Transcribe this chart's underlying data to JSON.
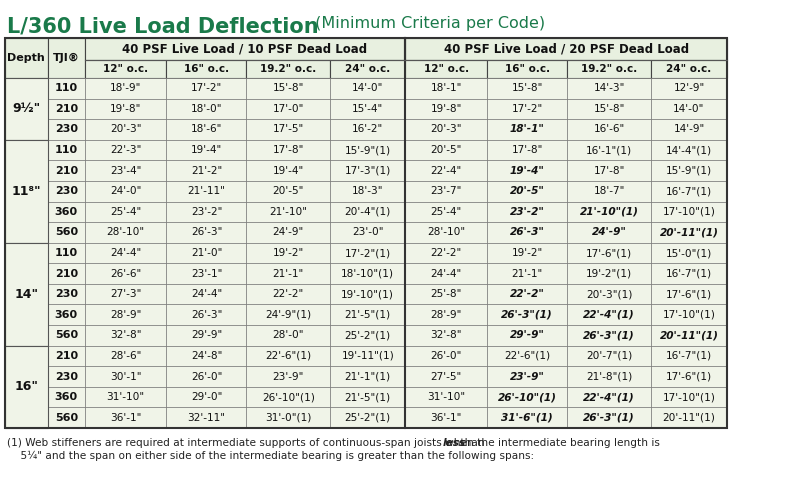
{
  "title_bold": "L/360 Live Load Deflection",
  "title_normal": " (Minimum Criteria per Code)",
  "title_color": "#1a7a4a",
  "bg_color": "#ffffff",
  "header_bg": "#e8f0e0",
  "cell_bg_light": "#f0f4e8",
  "border_color": "#555555",
  "col_header_1": "40 PSF Live Load / 10 PSF Dead Load",
  "col_header_2": "40 PSF Live Load / 20 PSF Dead Load",
  "sub_headers": [
    "12\" o.c.",
    "16\" o.c.",
    "19.2\" o.c.",
    "24\" o.c.",
    "12\" o.c.",
    "16\" o.c.",
    "19.2\" o.c.",
    "24\" o.c."
  ],
  "depth_col": "Depth",
  "tji_col": "TJI®",
  "note_line1": "(1) Web stiffeners are required at intermediate supports of continuous-span joists when the intermediate bearing length is ",
  "note_less": "less",
  "note_line1b": " than",
  "note_line2": "    5¼\" and the span on either side of the intermediate bearing is greater than the following spans:",
  "rows": [
    {
      "depth": "9½\"",
      "tji": "110",
      "d1": "18'-9\"",
      "d2": "17'-2\"",
      "d3": "15'-8\"",
      "d4": "14'-0\"",
      "d5": "18'-1\"",
      "d6": "15'-8\"",
      "d7": "14'-3\"",
      "d8": "12'-9\"",
      "bold_cells": []
    },
    {
      "depth": "",
      "tji": "210",
      "d1": "19'-8\"",
      "d2": "18'-0\"",
      "d3": "17'-0\"",
      "d4": "15'-4\"",
      "d5": "19'-8\"",
      "d6": "17'-2\"",
      "d7": "15'-8\"",
      "d8": "14'-0\"",
      "bold_cells": []
    },
    {
      "depth": "",
      "tji": "230",
      "d1": "20'-3\"",
      "d2": "18'-6\"",
      "d3": "17'-5\"",
      "d4": "16'-2\"",
      "d5": "20'-3\"",
      "d6": "18'-1\"",
      "d7": "16'-6\"",
      "d8": "14'-9\"",
      "bold_cells": [
        1
      ]
    },
    {
      "depth": "11⁸\"",
      "tji": "110",
      "d1": "22'-3\"",
      "d2": "19'-4\"",
      "d3": "17'-8\"",
      "d4": "15'-9\"(1)",
      "d5": "20'-5\"",
      "d6": "17'-8\"",
      "d7": "16'-1\"(1)",
      "d8": "14'-4\"(1)",
      "bold_cells": []
    },
    {
      "depth": "",
      "tji": "210",
      "d1": "23'-4\"",
      "d2": "21'-2\"",
      "d3": "19'-4\"",
      "d4": "17'-3\"(1)",
      "d5": "22'-4\"",
      "d6": "19'-4\"",
      "d7": "17'-8\"",
      "d8": "15'-9\"(1)",
      "bold_cells": [
        1
      ]
    },
    {
      "depth": "",
      "tji": "230",
      "d1": "24'-0\"",
      "d2": "21'-11\"",
      "d3": "20'-5\"",
      "d4": "18'-3\"",
      "d5": "23'-7\"",
      "d6": "20'-5\"",
      "d7": "18'-7\"",
      "d8": "16'-7\"(1)",
      "bold_cells": [
        1
      ]
    },
    {
      "depth": "",
      "tji": "360",
      "d1": "25'-4\"",
      "d2": "23'-2\"",
      "d3": "21'-10\"",
      "d4": "20'-4\"(1)",
      "d5": "25'-4\"",
      "d6": "23'-2\"",
      "d7": "21'-10\"(1)",
      "d8": "17'-10\"(1)",
      "bold_cells": [
        1,
        2
      ]
    },
    {
      "depth": "",
      "tji": "560",
      "d1": "28'-10\"",
      "d2": "26'-3\"",
      "d3": "24'-9\"",
      "d4": "23'-0\"",
      "d5": "28'-10\"",
      "d6": "26'-3\"",
      "d7": "24'-9\"",
      "d8": "20'-11\"(1)",
      "bold_cells": [
        1,
        2,
        3
      ]
    },
    {
      "depth": "14\"",
      "tji": "110",
      "d1": "24'-4\"",
      "d2": "21'-0\"",
      "d3": "19'-2\"",
      "d4": "17'-2\"(1)",
      "d5": "22'-2\"",
      "d6": "19'-2\"",
      "d7": "17'-6\"(1)",
      "d8": "15'-0\"(1)",
      "bold_cells": []
    },
    {
      "depth": "",
      "tji": "210",
      "d1": "26'-6\"",
      "d2": "23'-1\"",
      "d3": "21'-1\"",
      "d4": "18'-10\"(1)",
      "d5": "24'-4\"",
      "d6": "21'-1\"",
      "d7": "19'-2\"(1)",
      "d8": "16'-7\"(1)",
      "bold_cells": []
    },
    {
      "depth": "",
      "tji": "230",
      "d1": "27'-3\"",
      "d2": "24'-4\"",
      "d3": "22'-2\"",
      "d4": "19'-10\"(1)",
      "d5": "25'-8\"",
      "d6": "22'-2\"",
      "d7": "20'-3\"(1)",
      "d8": "17'-6\"(1)",
      "bold_cells": [
        1
      ]
    },
    {
      "depth": "",
      "tji": "360",
      "d1": "28'-9\"",
      "d2": "26'-3\"",
      "d3": "24'-9\"(1)",
      "d4": "21'-5\"(1)",
      "d5": "28'-9\"",
      "d6": "26'-3\"(1)",
      "d7": "22'-4\"(1)",
      "d8": "17'-10\"(1)",
      "bold_cells": [
        1,
        2
      ]
    },
    {
      "depth": "",
      "tji": "560",
      "d1": "32'-8\"",
      "d2": "29'-9\"",
      "d3": "28'-0\"",
      "d4": "25'-2\"(1)",
      "d5": "32'-8\"",
      "d6": "29'-9\"",
      "d7": "26'-3\"(1)",
      "d8": "20'-11\"(1)",
      "bold_cells": [
        1,
        2,
        3
      ]
    },
    {
      "depth": "16\"",
      "tji": "210",
      "d1": "28'-6\"",
      "d2": "24'-8\"",
      "d3": "22'-6\"(1)",
      "d4": "19'-11\"(1)",
      "d5": "26'-0\"",
      "d6": "22'-6\"(1)",
      "d7": "20'-7\"(1)",
      "d8": "16'-7\"(1)",
      "bold_cells": []
    },
    {
      "depth": "",
      "tji": "230",
      "d1": "30'-1\"",
      "d2": "26'-0\"",
      "d3": "23'-9\"",
      "d4": "21'-1\"(1)",
      "d5": "27'-5\"",
      "d6": "23'-9\"",
      "d7": "21'-8\"(1)",
      "d8": "17'-6\"(1)",
      "bold_cells": [
        1
      ]
    },
    {
      "depth": "",
      "tji": "360",
      "d1": "31'-10\"",
      "d2": "29'-0\"",
      "d3": "26'-10\"(1)",
      "d4": "21'-5\"(1)",
      "d5": "31'-10\"",
      "d6": "26'-10\"(1)",
      "d7": "22'-4\"(1)",
      "d8": "17'-10\"(1)",
      "bold_cells": [
        1,
        2
      ]
    },
    {
      "depth": "",
      "tji": "560",
      "d1": "36'-1\"",
      "d2": "32'-11\"",
      "d3": "31'-0\"(1)",
      "d4": "25'-2\"(1)",
      "d5": "36'-1\"",
      "d6": "31'-6\"(1)",
      "d7": "26'-3\"(1)",
      "d8": "20'-11\"(1)",
      "bold_cells": [
        1,
        2
      ]
    }
  ]
}
